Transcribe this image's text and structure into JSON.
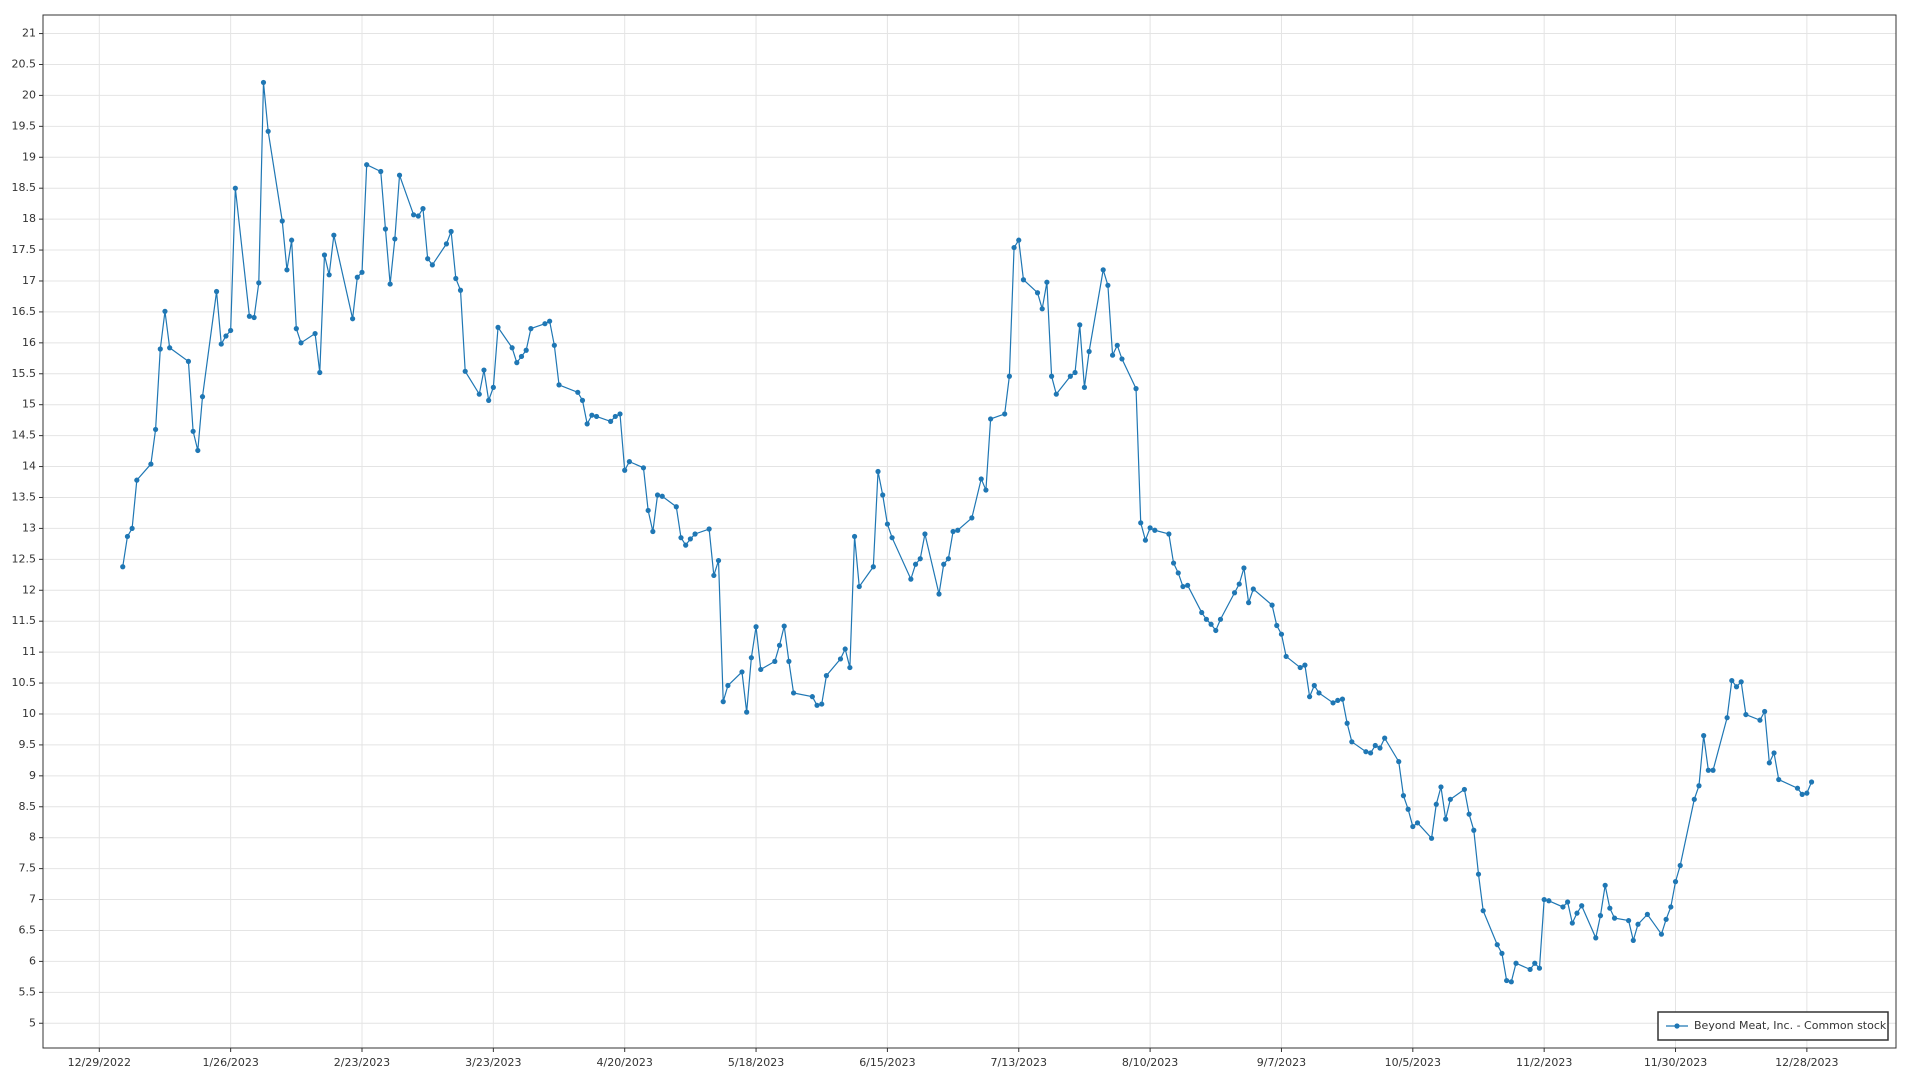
{
  "chart_data": {
    "type": "line",
    "grid": true,
    "legend": "bottom-right",
    "xlim": [
      "12/17/2022",
      "1/16/2024"
    ],
    "xticks": [
      "12/29/2022",
      "1/26/2023",
      "2/23/2023",
      "3/23/2023",
      "4/20/2023",
      "5/18/2023",
      "6/15/2023",
      "7/13/2023",
      "8/10/2023",
      "9/7/2023",
      "10/5/2023",
      "11/2/2023",
      "11/30/2023",
      "12/28/2023"
    ],
    "ylim": [
      4.6,
      21.3
    ],
    "yticks": [
      5,
      5.5,
      6,
      6.5,
      7,
      7.5,
      8,
      8.5,
      9,
      9.5,
      10,
      10.5,
      11,
      11.5,
      12,
      12.5,
      13,
      13.5,
      14,
      14.5,
      15,
      15.5,
      16,
      16.5,
      17,
      17.5,
      18,
      18.5,
      19,
      19.5,
      20,
      20.5,
      21
    ],
    "x": [
      "1/3/2023",
      "1/4/2023",
      "1/5/2023",
      "1/6/2023",
      "1/9/2023",
      "1/10/2023",
      "1/11/2023",
      "1/12/2023",
      "1/13/2023",
      "1/17/2023",
      "1/18/2023",
      "1/19/2023",
      "1/20/2023",
      "1/23/2023",
      "1/24/2023",
      "1/25/2023",
      "1/26/2023",
      "1/27/2023",
      "1/30/2023",
      "1/31/2023",
      "2/1/2023",
      "2/2/2023",
      "2/3/2023",
      "2/6/2023",
      "2/7/2023",
      "2/8/2023",
      "2/9/2023",
      "2/10/2023",
      "2/13/2023",
      "2/14/2023",
      "2/15/2023",
      "2/16/2023",
      "2/17/2023",
      "2/21/2023",
      "2/22/2023",
      "2/23/2023",
      "2/24/2023",
      "2/27/2023",
      "2/28/2023",
      "3/1/2023",
      "3/2/2023",
      "3/3/2023",
      "3/6/2023",
      "3/7/2023",
      "3/8/2023",
      "3/9/2023",
      "3/10/2023",
      "3/13/2023",
      "3/14/2023",
      "3/15/2023",
      "3/16/2023",
      "3/17/2023",
      "3/20/2023",
      "3/21/2023",
      "3/22/2023",
      "3/23/2023",
      "3/24/2023",
      "3/27/2023",
      "3/28/2023",
      "3/29/2023",
      "3/30/2023",
      "3/31/2023",
      "4/3/2023",
      "4/4/2023",
      "4/5/2023",
      "4/6/2023",
      "4/10/2023",
      "4/11/2023",
      "4/12/2023",
      "4/13/2023",
      "4/14/2023",
      "4/17/2023",
      "4/18/2023",
      "4/19/2023",
      "4/20/2023",
      "4/21/2023",
      "4/24/2023",
      "4/25/2023",
      "4/26/2023",
      "4/27/2023",
      "4/28/2023",
      "5/1/2023",
      "5/2/2023",
      "5/3/2023",
      "5/4/2023",
      "5/5/2023",
      "5/8/2023",
      "5/9/2023",
      "5/10/2023",
      "5/11/2023",
      "5/12/2023",
      "5/15/2023",
      "5/16/2023",
      "5/17/2023",
      "5/18/2023",
      "5/19/2023",
      "5/22/2023",
      "5/23/2023",
      "5/24/2023",
      "5/25/2023",
      "5/26/2023",
      "5/30/2023",
      "5/31/2023",
      "6/1/2023",
      "6/2/2023",
      "6/5/2023",
      "6/6/2023",
      "6/7/2023",
      "6/8/2023",
      "6/9/2023",
      "6/12/2023",
      "6/13/2023",
      "6/14/2023",
      "6/15/2023",
      "6/16/2023",
      "6/20/2023",
      "6/21/2023",
      "6/22/2023",
      "6/23/2023",
      "6/26/2023",
      "6/27/2023",
      "6/28/2023",
      "6/29/2023",
      "6/30/2023",
      "7/3/2023",
      "7/5/2023",
      "7/6/2023",
      "7/7/2023",
      "7/10/2023",
      "7/11/2023",
      "7/12/2023",
      "7/13/2023",
      "7/14/2023",
      "7/17/2023",
      "7/18/2023",
      "7/19/2023",
      "7/20/2023",
      "7/21/2023",
      "7/24/2023",
      "7/25/2023",
      "7/26/2023",
      "7/27/2023",
      "7/28/2023",
      "7/31/2023",
      "8/1/2023",
      "8/2/2023",
      "8/3/2023",
      "8/4/2023",
      "8/7/2023",
      "8/8/2023",
      "8/9/2023",
      "8/10/2023",
      "8/11/2023",
      "8/14/2023",
      "8/15/2023",
      "8/16/2023",
      "8/17/2023",
      "8/18/2023",
      "8/21/2023",
      "8/22/2023",
      "8/23/2023",
      "8/24/2023",
      "8/25/2023",
      "8/28/2023",
      "8/29/2023",
      "8/30/2023",
      "8/31/2023",
      "9/1/2023",
      "9/5/2023",
      "9/6/2023",
      "9/7/2023",
      "9/8/2023",
      "9/11/2023",
      "9/12/2023",
      "9/13/2023",
      "9/14/2023",
      "9/15/2023",
      "9/18/2023",
      "9/19/2023",
      "9/20/2023",
      "9/21/2023",
      "9/22/2023",
      "9/25/2023",
      "9/26/2023",
      "9/27/2023",
      "9/28/2023",
      "9/29/2023",
      "10/2/2023",
      "10/3/2023",
      "10/4/2023",
      "10/5/2023",
      "10/6/2023",
      "10/9/2023",
      "10/10/2023",
      "10/11/2023",
      "10/12/2023",
      "10/13/2023",
      "10/16/2023",
      "10/17/2023",
      "10/18/2023",
      "10/19/2023",
      "10/20/2023",
      "10/23/2023",
      "10/24/2023",
      "10/25/2023",
      "10/26/2023",
      "10/27/2023",
      "10/30/2023",
      "10/31/2023",
      "11/1/2023",
      "11/2/2023",
      "11/3/2023",
      "11/6/2023",
      "11/7/2023",
      "11/8/2023",
      "11/9/2023",
      "11/10/2023",
      "11/13/2023",
      "11/14/2023",
      "11/15/2023",
      "11/16/2023",
      "11/17/2023",
      "11/20/2023",
      "11/21/2023",
      "11/22/2023",
      "11/24/2023",
      "11/27/2023",
      "11/28/2023",
      "11/29/2023",
      "11/30/2023",
      "12/1/2023",
      "12/4/2023",
      "12/5/2023",
      "12/6/2023",
      "12/7/2023",
      "12/8/2023",
      "12/11/2023",
      "12/12/2023",
      "12/13/2023",
      "12/14/2023",
      "12/15/2023",
      "12/18/2023",
      "12/19/2023",
      "12/20/2023",
      "12/21/2023",
      "12/22/2023",
      "12/26/2023",
      "12/27/2023",
      "12/28/2023",
      "12/29/2023"
    ],
    "series": [
      {
        "name": "Beyond Meat, Inc. - Common stock",
        "color": "#1f77b4",
        "values": [
          12.38,
          12.87,
          13.0,
          13.78,
          14.04,
          14.6,
          15.9,
          16.51,
          15.92,
          15.7,
          14.57,
          14.26,
          15.13,
          16.83,
          15.98,
          16.11,
          16.2,
          18.5,
          16.43,
          16.41,
          16.97,
          20.21,
          19.42,
          17.97,
          17.18,
          17.66,
          16.23,
          16.0,
          16.15,
          15.52,
          17.42,
          17.1,
          17.74,
          16.39,
          17.06,
          17.14,
          18.88,
          18.77,
          17.84,
          16.95,
          17.68,
          18.71,
          18.07,
          18.05,
          18.17,
          17.36,
          17.26,
          17.6,
          17.8,
          17.04,
          16.85,
          15.54,
          15.17,
          15.56,
          15.07,
          15.28,
          16.25,
          15.92,
          15.68,
          15.78,
          15.88,
          16.23,
          16.31,
          16.35,
          15.96,
          15.32,
          15.2,
          15.07,
          14.69,
          14.83,
          14.81,
          14.73,
          14.81,
          14.85,
          13.94,
          14.08,
          13.98,
          13.29,
          12.95,
          13.54,
          13.52,
          13.35,
          12.85,
          12.73,
          12.83,
          12.91,
          12.99,
          12.24,
          12.48,
          10.2,
          10.46,
          10.68,
          10.03,
          10.91,
          11.41,
          10.72,
          10.85,
          11.11,
          11.42,
          10.85,
          10.34,
          10.28,
          10.14,
          10.16,
          10.62,
          10.89,
          11.05,
          10.75,
          12.87,
          12.06,
          12.38,
          13.92,
          13.54,
          13.07,
          12.85,
          12.18,
          12.42,
          12.51,
          12.91,
          11.94,
          12.42,
          12.51,
          12.95,
          12.97,
          13.17,
          13.8,
          13.62,
          14.77,
          14.85,
          15.46,
          17.54,
          17.66,
          17.02,
          16.81,
          16.55,
          16.98,
          15.46,
          15.17,
          15.46,
          15.52,
          16.29,
          15.28,
          15.86,
          17.18,
          16.93,
          15.8,
          15.96,
          15.74,
          15.26,
          13.09,
          12.81,
          13.01,
          12.97,
          12.91,
          12.44,
          12.28,
          12.06,
          12.08,
          11.64,
          11.53,
          11.45,
          11.35,
          11.53,
          11.96,
          12.1,
          12.36,
          11.8,
          12.02,
          11.76,
          11.43,
          11.29,
          10.93,
          10.75,
          10.79,
          10.28,
          10.46,
          10.34,
          10.18,
          10.22,
          10.24,
          9.85,
          9.55,
          9.39,
          9.37,
          9.49,
          9.45,
          9.61,
          9.23,
          8.68,
          8.46,
          8.18,
          8.24,
          7.99,
          8.54,
          8.82,
          8.3,
          8.62,
          8.78,
          8.38,
          8.12,
          7.41,
          6.82,
          6.27,
          6.13,
          5.69,
          5.67,
          5.97,
          5.87,
          5.97,
          5.89,
          7.0,
          6.98,
          6.88,
          6.96,
          6.62,
          6.78,
          6.9,
          6.38,
          6.74,
          7.23,
          6.86,
          6.7,
          6.66,
          6.34,
          6.6,
          6.76,
          6.44,
          6.68,
          6.88,
          7.29,
          7.55,
          8.62,
          8.84,
          9.65,
          9.09,
          9.09,
          9.94,
          10.54,
          10.44,
          10.52,
          9.99,
          9.9,
          10.04,
          9.21,
          9.37,
          8.94,
          8.8,
          8.7,
          8.72,
          8.9
        ]
      }
    ]
  }
}
